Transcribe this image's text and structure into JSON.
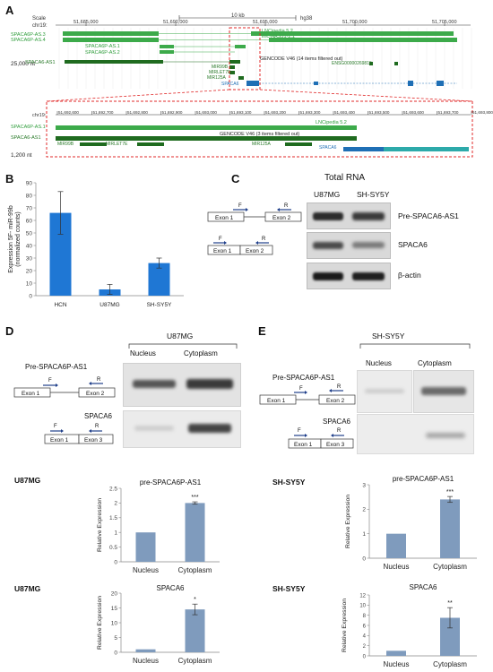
{
  "panels": {
    "a": {
      "letter": "A"
    },
    "b": {
      "letter": "B"
    },
    "c": {
      "letter": "C"
    },
    "d": {
      "letter": "D"
    },
    "e": {
      "letter": "E"
    }
  },
  "browser_top": {
    "scale_label": "Scale",
    "scale_value": "10 kb",
    "assembly": "hg38",
    "chrom": "chr19:",
    "positions": [
      "51,685,000",
      "51,690,000",
      "51,695,000",
      "51,700,000",
      "51,705,000"
    ],
    "tracks": [
      "SPACA6P-AS.3",
      "SPACA6P-AS.4",
      "LNCipedia 5.2",
      "linc-HAS51-2.1",
      "SPACA6P-AS.1",
      "SPACA6P-AS.2",
      "SPACA6-AS1",
      "GENCODE V46 (14 items filtered out)",
      "MIR99B",
      "MIRLET7E",
      "MIR125A",
      "SPACA6",
      "ENSG00000269815"
    ],
    "nt_label": "25,000 nt"
  },
  "browser_zoom": {
    "chrom": "chr19:",
    "positions": [
      "51,692,600",
      "51,692,700",
      "51,692,800",
      "51,692,900",
      "51,693,000",
      "51,693,100",
      "51,693,200",
      "51,693,300",
      "51,693,400",
      "51,693,500",
      "51,693,600",
      "51,693,700",
      "51,693,800"
    ],
    "tracks": [
      "SPACA6P-AS.1",
      "SPACA6-AS1",
      "LNCipedia 5.2",
      "GENCODE V46 (3 items filtered out)",
      "MIR99B",
      "MIRLET7E",
      "MIR125A",
      "SPACA6"
    ],
    "nt_label": "1,200 nt"
  },
  "panel_c": {
    "title": "Total RNA",
    "columns": [
      "U87MG",
      "SH-SY5Y"
    ],
    "rows": [
      "Pre-SPACA6-AS1",
      "SPACA6",
      "β-actin"
    ],
    "exons_row1": [
      "Exon 1",
      "Exon 2"
    ],
    "exons_row2": [
      "Exon 1",
      "Exon 2"
    ],
    "primer_f": "F",
    "primer_r": "R"
  },
  "panel_d": {
    "cell": "U87MG",
    "columns": [
      "Nucleus",
      "Cytoplasm"
    ],
    "gene1": "Pre-SPACA6P-AS1",
    "gene2": "SPACA6",
    "exons1": [
      "Exon 1",
      "Exon 2"
    ],
    "exons2": [
      "Exon 1",
      "Exon 3"
    ],
    "primer_f": "F",
    "primer_r": "R"
  },
  "panel_e": {
    "cell": "SH-SY5Y",
    "columns": [
      "Nucleus",
      "Cytoplasm"
    ],
    "gene1": "Pre-SPACA6P-AS1",
    "gene2": "SPACA6",
    "exons1": [
      "Exon 1",
      "Exon 2"
    ],
    "exons2": [
      "Exon 1",
      "Exon 3"
    ],
    "primer_f": "F",
    "primer_r": "R"
  },
  "chart_data": [
    {
      "id": "B",
      "type": "bar",
      "categories": [
        "HCN",
        "U87MG",
        "SH-SY5Y"
      ],
      "values": [
        66,
        5,
        26
      ],
      "errors": [
        17,
        4,
        4
      ],
      "ylabel": "Expression 5F- miR-99b (normalized counts)",
      "ylim": [
        0,
        90
      ],
      "yticks": [
        0,
        10,
        20,
        30,
        40,
        50,
        60,
        70,
        80,
        90
      ],
      "color": "#1f77d4"
    },
    {
      "id": "D1",
      "type": "bar",
      "side_label": "U87MG",
      "title": "pre-SPACA6P-AS1",
      "categories": [
        "Nucleus",
        "Cytoplasm"
      ],
      "values": [
        1.0,
        2.0
      ],
      "errors": [
        0,
        0.04
      ],
      "significance": [
        "",
        "***"
      ],
      "ylabel": "Relative Expression",
      "ylim": [
        0,
        2.5
      ],
      "yticks": [
        "0",
        "0.5",
        "1",
        "1.5",
        "2",
        "2.5"
      ],
      "color": "#7f9bbd"
    },
    {
      "id": "E1",
      "type": "bar",
      "side_label": "SH-SY5Y",
      "title": "pre-SPACA6P-AS1",
      "categories": [
        "Nucleus",
        "Cytoplasm"
      ],
      "values": [
        1.0,
        2.4
      ],
      "errors": [
        0,
        0.12
      ],
      "significance": [
        "",
        "***"
      ],
      "ylabel": "Relative Expression",
      "ylim": [
        0,
        3
      ],
      "yticks": [
        "0",
        "1",
        "2",
        "3"
      ],
      "color": "#7f9bbd"
    },
    {
      "id": "D2",
      "type": "bar",
      "side_label": "U87MG",
      "title": "SPACA6",
      "categories": [
        "Nucleus",
        "Cytoplasm"
      ],
      "values": [
        1.0,
        14.5
      ],
      "errors": [
        0,
        1.8
      ],
      "significance": [
        "",
        "*"
      ],
      "ylabel": "Relative Expression",
      "ylim": [
        0,
        20
      ],
      "yticks": [
        "0",
        "5",
        "10",
        "15",
        "20"
      ],
      "color": "#7f9bbd"
    },
    {
      "id": "E2",
      "type": "bar",
      "side_label": "SH-SY5Y",
      "title": "SPACA6",
      "categories": [
        "Nucleus",
        "Cytoplasm"
      ],
      "values": [
        1.0,
        7.5
      ],
      "errors": [
        0,
        2.0
      ],
      "significance": [
        "",
        "**"
      ],
      "ylabel": "Relative Expression",
      "ylim": [
        0,
        12
      ],
      "yticks": [
        "0",
        "2",
        "4",
        "6",
        "8",
        "10",
        "12"
      ],
      "color": "#7f9bbd"
    }
  ]
}
